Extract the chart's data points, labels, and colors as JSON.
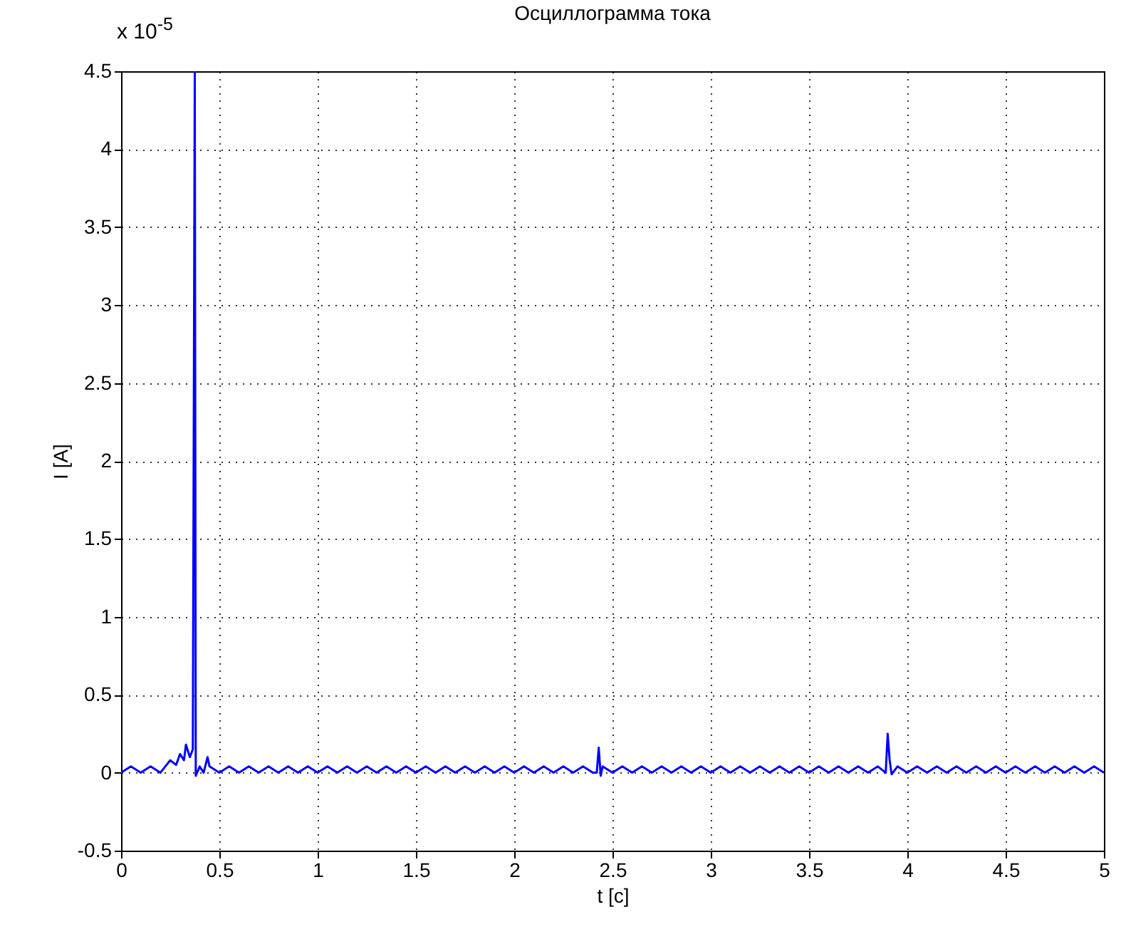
{
  "chart_data": {
    "type": "line",
    "title": "Осциллограмма тока",
    "xlabel": "t [c]",
    "ylabel": "I [A]",
    "annotations": [
      "x 10$^{-5}$"
    ],
    "xlim": [
      0,
      5
    ],
    "xticks": [
      0,
      0.5,
      1,
      1.5,
      2,
      2.5,
      3,
      3.5,
      4,
      4.5,
      5
    ],
    "ylim": [
      -0.5,
      4.5
    ],
    "yticks": [
      -0.5,
      0,
      0.5,
      1,
      1.5,
      2,
      2.5,
      3,
      3.5,
      4,
      4.5
    ],
    "grid": true,
    "series": [
      {
        "color": "#0000ff",
        "x": [
          0,
          0.05,
          0.1,
          0.15,
          0.2,
          0.25,
          0.28,
          0.3,
          0.32,
          0.33,
          0.35,
          0.365,
          0.375,
          0.38,
          0.4,
          0.42,
          0.44,
          0.45,
          0.5,
          0.55,
          0.6,
          0.65,
          0.7,
          0.75,
          0.8,
          0.85,
          0.9,
          0.95,
          1,
          1.05,
          1.1,
          1.15,
          1.2,
          1.25,
          1.3,
          1.35,
          1.4,
          1.45,
          1.5,
          1.55,
          1.6,
          1.65,
          1.7,
          1.75,
          1.8,
          1.85,
          1.9,
          1.95,
          2,
          2.05,
          2.1,
          2.15,
          2.2,
          2.25,
          2.3,
          2.35,
          2.4,
          2.42,
          2.43,
          2.44,
          2.45,
          2.5,
          2.55,
          2.6,
          2.65,
          2.7,
          2.75,
          2.8,
          2.85,
          2.9,
          2.95,
          3,
          3.05,
          3.1,
          3.15,
          3.2,
          3.25,
          3.3,
          3.35,
          3.4,
          3.45,
          3.5,
          3.55,
          3.6,
          3.65,
          3.7,
          3.75,
          3.8,
          3.85,
          3.89,
          3.9,
          3.91,
          3.92,
          3.95,
          4,
          4.05,
          4.1,
          4.15,
          4.2,
          4.25,
          4.3,
          4.35,
          4.4,
          4.45,
          4.5,
          4.55,
          4.6,
          4.65,
          4.7,
          4.75,
          4.8,
          4.85,
          4.9,
          4.95,
          5
        ],
        "values": [
          0,
          0.04,
          0,
          0.04,
          0,
          0.08,
          0.05,
          0.12,
          0.08,
          0.18,
          0.1,
          0.15,
          4.5,
          -0.02,
          0.04,
          0,
          0.1,
          0.04,
          0,
          0.04,
          0,
          0.04,
          0,
          0.04,
          0,
          0.04,
          0,
          0.04,
          0,
          0.04,
          0,
          0.04,
          0,
          0.04,
          0,
          0.04,
          0,
          0.04,
          0,
          0.04,
          0,
          0.04,
          0,
          0.04,
          0,
          0.04,
          0,
          0.04,
          0,
          0.04,
          0,
          0.04,
          0,
          0.04,
          0,
          0.04,
          0,
          0,
          0.16,
          -0.02,
          0.04,
          0,
          0.04,
          0,
          0.04,
          0,
          0.04,
          0,
          0.04,
          0,
          0.04,
          0,
          0.04,
          0,
          0.04,
          0,
          0.04,
          0,
          0.04,
          0,
          0.04,
          0,
          0.04,
          0,
          0.04,
          0,
          0.04,
          0,
          0.04,
          0,
          0.25,
          0.08,
          -0.01,
          0.04,
          0,
          0.04,
          0,
          0.04,
          0,
          0.04,
          0,
          0.04,
          0,
          0.04,
          0,
          0.04,
          0,
          0.04,
          0,
          0.04,
          0,
          0.04,
          0,
          0.04,
          0
        ]
      }
    ]
  }
}
